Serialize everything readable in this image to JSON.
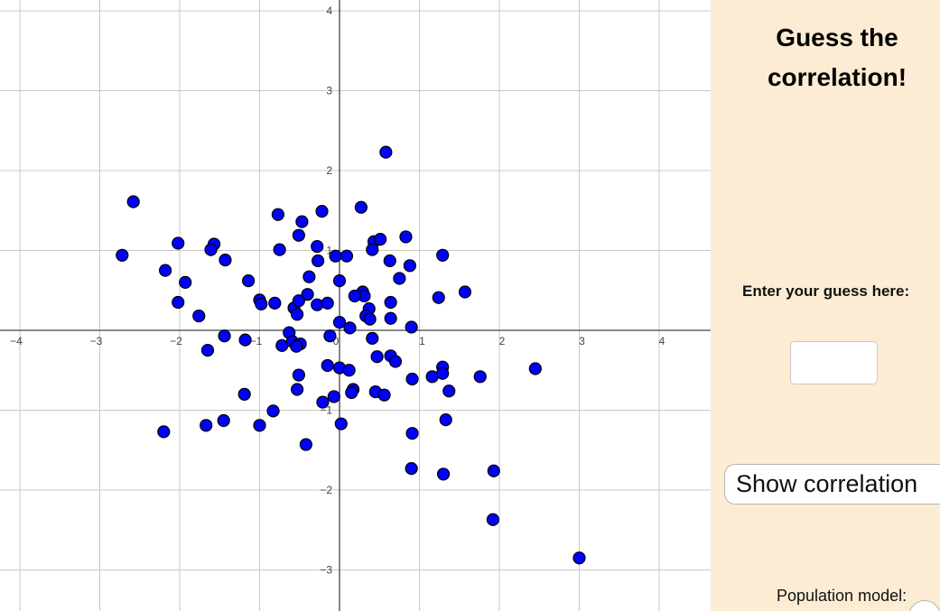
{
  "panel": {
    "title": "Guess the correlation!",
    "guess_label": "Enter your guess here:",
    "guess_value": "",
    "show_button": "Show correlation",
    "population_label": "Population model:"
  },
  "colors": {
    "point_fill": "#0000ff",
    "point_stroke": "#000000",
    "panel_bg": "#fdecd4",
    "grid": "#c8c8c8",
    "axis": "#444444"
  },
  "chart_data": {
    "type": "scatter",
    "title": "",
    "xlabel": "",
    "ylabel": "",
    "xlim": [
      -4.2,
      4.6
    ],
    "ylim": [
      -3.5,
      4.1
    ],
    "grid": true,
    "x_ticks": [
      "−4",
      "−3",
      "−2",
      "−1",
      "0",
      "1",
      "2",
      "3",
      "4"
    ],
    "y_ticks": [
      "4",
      "3",
      "2",
      "1",
      "−1",
      "−2",
      "−3"
    ],
    "points": [
      [
        0.58,
        2.23
      ],
      [
        -2.58,
        1.61
      ],
      [
        -0.77,
        1.45
      ],
      [
        -0.22,
        1.49
      ],
      [
        0.27,
        1.54
      ],
      [
        -0.47,
        1.36
      ],
      [
        -2.72,
        0.94
      ],
      [
        -2.02,
        1.09
      ],
      [
        -1.57,
        1.08
      ],
      [
        -1.61,
        1.01
      ],
      [
        -1.43,
        0.88
      ],
      [
        -0.75,
        1.01
      ],
      [
        -0.51,
        1.19
      ],
      [
        -0.28,
        1.05
      ],
      [
        -0.05,
        0.93
      ],
      [
        0.09,
        0.93
      ],
      [
        0.43,
        1.11
      ],
      [
        0.51,
        1.14
      ],
      [
        0.41,
        1.01
      ],
      [
        0.83,
        1.17
      ],
      [
        1.29,
        0.94
      ],
      [
        0.63,
        0.87
      ],
      [
        0.88,
        0.81
      ],
      [
        -2.18,
        0.75
      ],
      [
        -1.93,
        0.6
      ],
      [
        -1.14,
        0.62
      ],
      [
        -0.38,
        0.67
      ],
      [
        -0.27,
        0.87
      ],
      [
        0.0,
        0.62
      ],
      [
        0.75,
        0.65
      ],
      [
        1.57,
        0.48
      ],
      [
        1.24,
        0.41
      ],
      [
        0.29,
        0.48
      ],
      [
        0.31,
        0.43
      ],
      [
        0.19,
        0.43
      ],
      [
        -0.4,
        0.45
      ],
      [
        -1.0,
        0.38
      ],
      [
        -0.98,
        0.33
      ],
      [
        -0.81,
        0.34
      ],
      [
        -0.57,
        0.28
      ],
      [
        -0.51,
        0.37
      ],
      [
        -0.28,
        0.32
      ],
      [
        -0.15,
        0.34
      ],
      [
        -0.53,
        0.2
      ],
      [
        0.64,
        0.35
      ],
      [
        0.37,
        0.27
      ],
      [
        0.33,
        0.18
      ],
      [
        0.38,
        0.14
      ],
      [
        -2.02,
        0.35
      ],
      [
        -1.76,
        0.18
      ],
      [
        0.64,
        0.15
      ],
      [
        0.0,
        0.1
      ],
      [
        0.13,
        0.03
      ],
      [
        0.9,
        0.04
      ],
      [
        -1.44,
        -0.07
      ],
      [
        -1.18,
        -0.12
      ],
      [
        -0.63,
        -0.03
      ],
      [
        -0.59,
        -0.14
      ],
      [
        -0.49,
        -0.17
      ],
      [
        -0.54,
        -0.2
      ],
      [
        -0.72,
        -0.19
      ],
      [
        -0.12,
        -0.07
      ],
      [
        0.41,
        -0.1
      ],
      [
        -1.65,
        -0.25
      ],
      [
        0.47,
        -0.33
      ],
      [
        0.64,
        -0.32
      ],
      [
        0.7,
        -0.39
      ],
      [
        -0.15,
        -0.44
      ],
      [
        0.0,
        -0.47
      ],
      [
        0.12,
        -0.5
      ],
      [
        1.29,
        -0.46
      ],
      [
        1.16,
        -0.58
      ],
      [
        1.29,
        -0.54
      ],
      [
        2.45,
        -0.48
      ],
      [
        1.76,
        -0.58
      ],
      [
        0.91,
        -0.61
      ],
      [
        -0.51,
        -0.56
      ],
      [
        0.17,
        -0.74
      ],
      [
        0.15,
        -0.78
      ],
      [
        -0.53,
        -0.74
      ],
      [
        0.45,
        -0.77
      ],
      [
        0.56,
        -0.81
      ],
      [
        1.37,
        -0.76
      ],
      [
        -1.19,
        -0.8
      ],
      [
        -0.07,
        -0.83
      ],
      [
        -0.21,
        -0.9
      ],
      [
        -0.83,
        -1.01
      ],
      [
        1.33,
        -1.12
      ],
      [
        -1.45,
        -1.13
      ],
      [
        -1.67,
        -1.19
      ],
      [
        -1.0,
        -1.19
      ],
      [
        0.02,
        -1.17
      ],
      [
        -2.2,
        -1.27
      ],
      [
        0.91,
        -1.29
      ],
      [
        -0.42,
        -1.43
      ],
      [
        0.9,
        -1.73
      ],
      [
        1.3,
        -1.8
      ],
      [
        1.93,
        -1.76
      ],
      [
        1.92,
        -2.37
      ],
      [
        3.0,
        -2.85
      ]
    ]
  }
}
